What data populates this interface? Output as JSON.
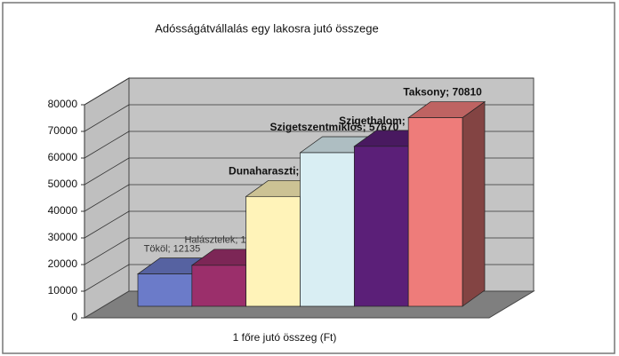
{
  "chart_data": {
    "type": "bar3d",
    "title": "Adósságátvállalás egy lakosra jutó összege",
    "x_label": "1 főre jutó összeg (Ft)",
    "categories": [
      "Tököl",
      "Halásztelek",
      "Dunaharaszti",
      "Szigetszentmiklós",
      "Szigethalom",
      "Taksony"
    ],
    "values": [
      12135,
      15388,
      41227,
      57670,
      60053,
      70810
    ],
    "value_labels": [
      "Tököl; 12135",
      "Halásztelek; 15388",
      "Dunaharaszti; 41227",
      "Szigetszentmiklós; 57670",
      "Szigethalom; 60053",
      "Taksony; 70810"
    ],
    "colors": [
      "#6b7bc9",
      "#9b2f6b",
      "#fff3b9",
      "#d9eef3",
      "#5b1f78",
      "#ee7c7a"
    ],
    "ylim": [
      0,
      80000
    ],
    "yticks": [
      0,
      10000,
      20000,
      30000,
      40000,
      50000,
      60000,
      70000,
      80000
    ],
    "grid": true
  }
}
